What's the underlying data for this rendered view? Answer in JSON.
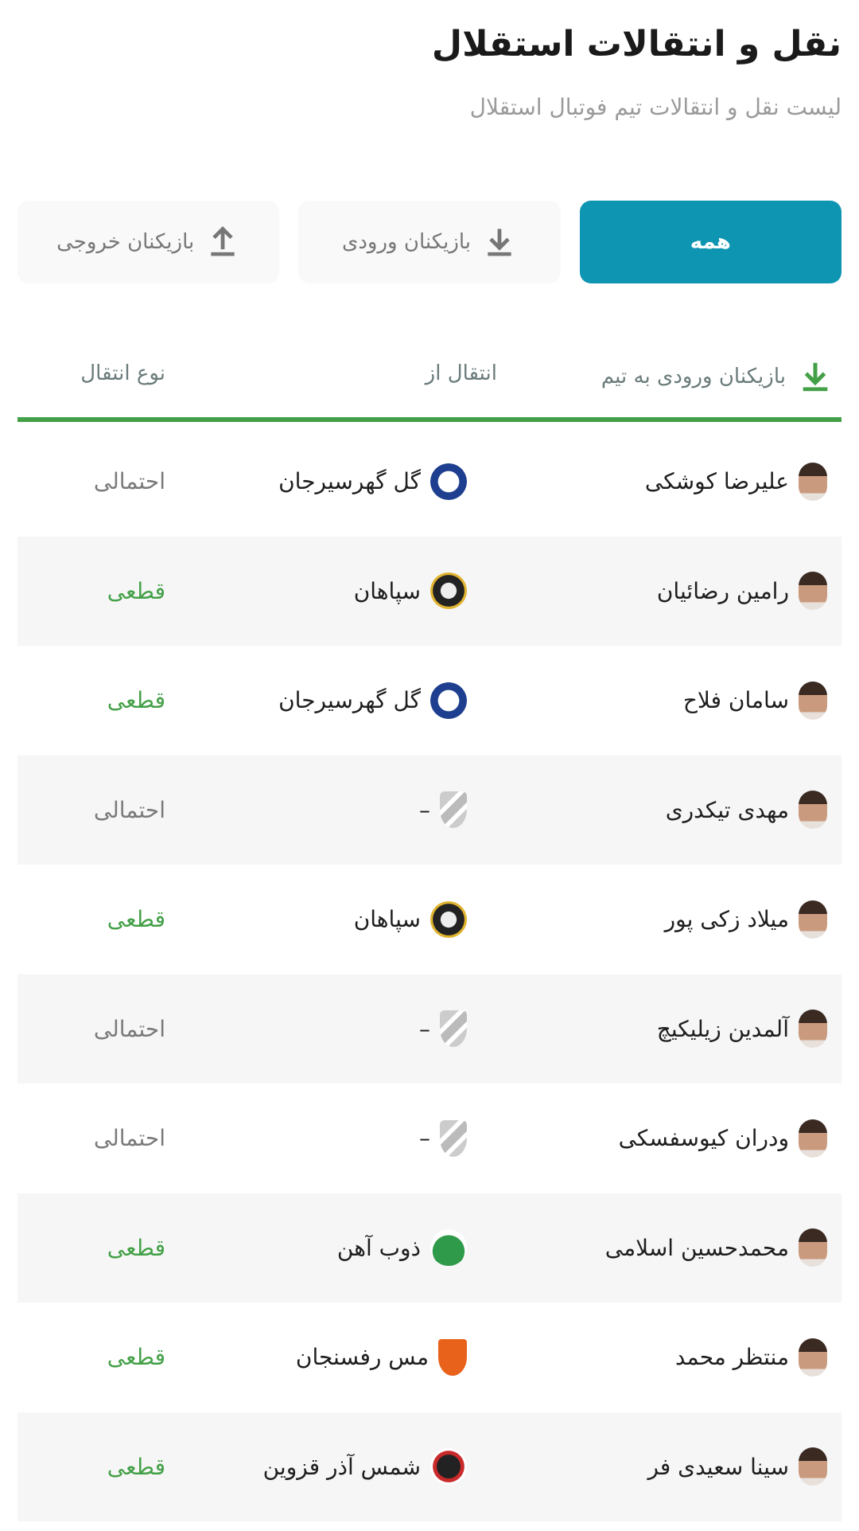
{
  "header": {
    "title": "نقل و انتقالات استقلال",
    "subtitle": "لیست نقل و انتقالات تیم فوتبال استقلال"
  },
  "tabs": [
    {
      "label": "همه",
      "active": true
    },
    {
      "label": "بازیکنان ورودی",
      "icon": "download-icon"
    },
    {
      "label": "بازیکنان خروجی",
      "icon": "upload-icon"
    }
  ],
  "table": {
    "headers": {
      "player": "بازیکنان ورودی به تیم",
      "from": "انتقال از",
      "type": "نوع انتقال"
    },
    "colors": {
      "accent": "#43a047",
      "tab_active": "#0d95b2",
      "final": "#43a047",
      "probable": "#7a7a7a"
    },
    "rows": [
      {
        "player": "علیرضا کوشکی",
        "club": "گل گهرسیرجان",
        "club_logo": "gol-gohar",
        "type": "احتمالی"
      },
      {
        "player": "رامین رضائیان",
        "club": "سپاهان",
        "club_logo": "sepahan",
        "type": "قطعی"
      },
      {
        "player": "سامان فلاح",
        "club": "گل گهرسیرجان",
        "club_logo": "gol-gohar",
        "type": "قطعی"
      },
      {
        "player": "مهدی تیکدری",
        "club": "–",
        "club_logo": "unknown",
        "type": "احتمالی"
      },
      {
        "player": "میلاد زکی پور",
        "club": "سپاهان",
        "club_logo": "sepahan",
        "type": "قطعی"
      },
      {
        "player": "آلمدین زیلیکیچ",
        "club": "–",
        "club_logo": "unknown",
        "type": "احتمالی"
      },
      {
        "player": "ودران کیوسفسکی",
        "club": "–",
        "club_logo": "unknown",
        "type": "احتمالی"
      },
      {
        "player": "محمدحسین اسلامی",
        "club": "ذوب آهن",
        "club_logo": "zob-ahan",
        "type": "قطعی"
      },
      {
        "player": "منتظر محمد",
        "club": "مس رفسنجان",
        "club_logo": "mes-rafsanjan",
        "type": "قطعی"
      },
      {
        "player": "سینا سعیدی فر",
        "club": "شمس آذر قزوین",
        "club_logo": "shams-azar",
        "type": "قطعی"
      }
    ]
  }
}
